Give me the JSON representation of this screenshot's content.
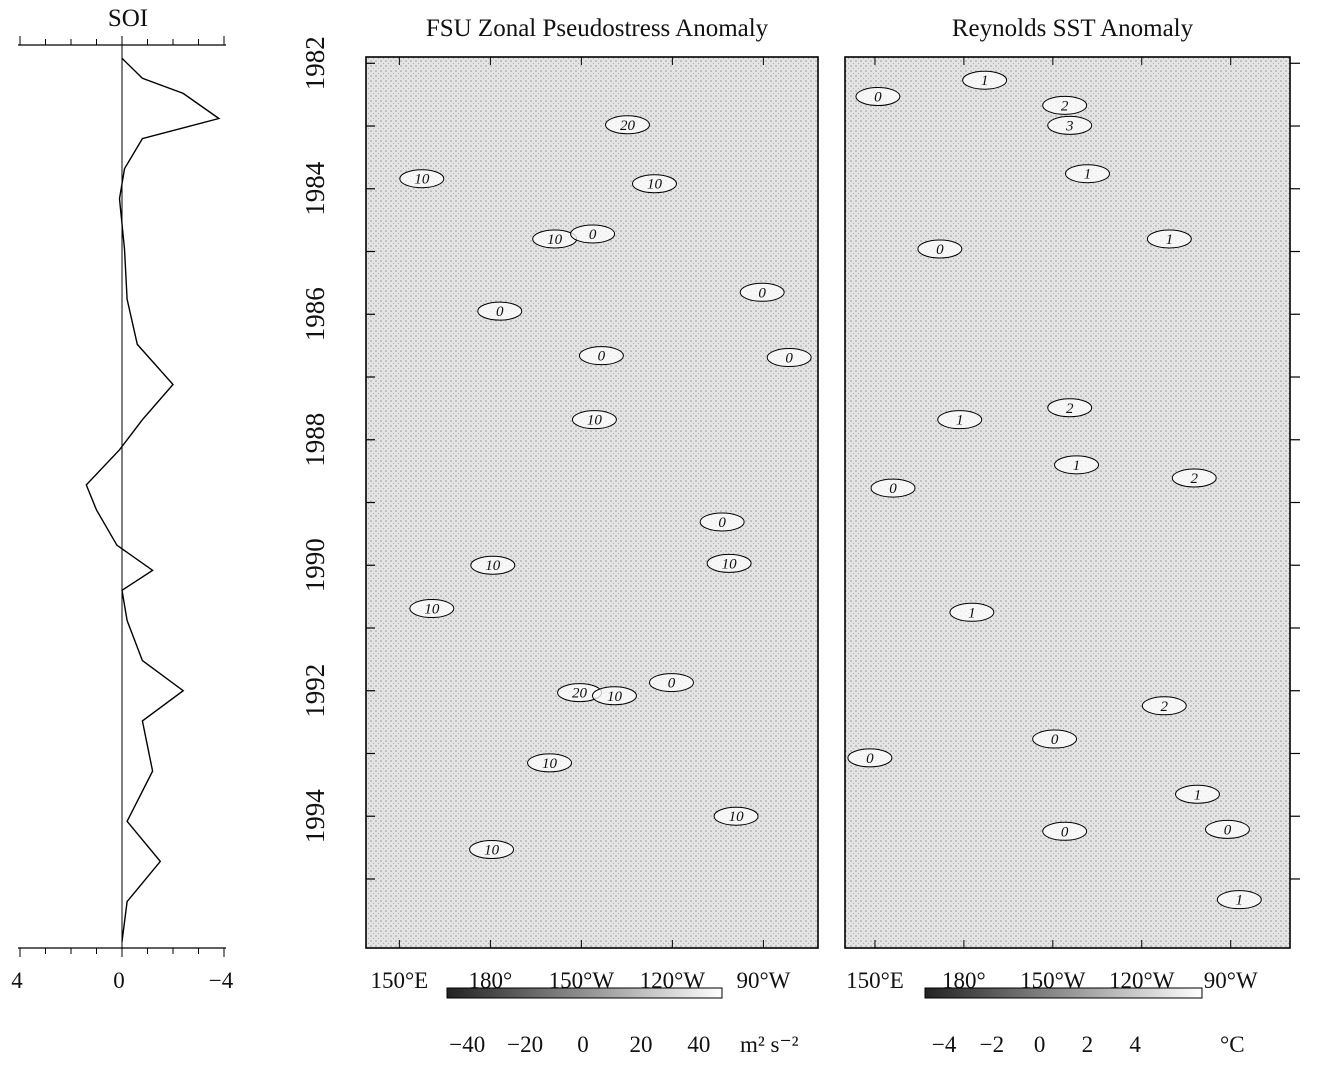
{
  "chart_data": [
    {
      "type": "line",
      "title": "SOI",
      "time": [
        1981.92,
        1982.24,
        1982.48,
        1982.88,
        1983.2,
        1983.68,
        1984.16,
        1984.96,
        1985.76,
        1986.48,
        1987.12,
        1987.68,
        1988.16,
        1988.72,
        1989.12,
        1989.68,
        1990.08,
        1990.4,
        1990.88,
        1991.52,
        1992.0,
        1992.48,
        1993.28,
        1994.08,
        1994.72,
        1995.36,
        1996.0
      ],
      "values": [
        0,
        -0.8,
        -2.4,
        -3.8,
        -0.8,
        -0.1,
        0.1,
        -0.1,
        -0.2,
        -0.6,
        -2.0,
        -0.8,
        0.1,
        1.4,
        1.0,
        0.2,
        -1.2,
        0,
        -0.2,
        -0.8,
        -2.4,
        -0.8,
        -1.2,
        -0.2,
        -1.5,
        -0.2,
        0
      ],
      "xlim": [
        4,
        -4
      ],
      "xticks": [
        4,
        0,
        {
          "value": -4,
          "label": "−4"
        }
      ],
      "xminorticks": [
        3,
        2,
        1,
        -1,
        -2,
        -3
      ],
      "ylim": [
        1981.9,
        1996.1
      ],
      "color": "#000"
    },
    {
      "type": "contour",
      "title": "FSU Zonal Pseudostress Anomaly",
      "xlim": [
        139,
        288
      ],
      "xticks": [
        {
          "value": 150,
          "label": "150°E"
        },
        {
          "value": 180,
          "label": "180°"
        },
        {
          "value": 210,
          "label": "150°W"
        },
        {
          "value": 240,
          "label": "120°W"
        },
        {
          "value": 270,
          "label": "90°W"
        }
      ],
      "ylim": [
        1981.9,
        1996.1
      ],
      "yticks": [
        1982,
        1984,
        1986,
        1988,
        1990,
        1992,
        1994
      ],
      "yminorticks": [
        1983,
        1985,
        1987,
        1989,
        1991,
        1993,
        1995
      ],
      "contour_labels": [
        {
          "level": 10,
          "lon": 234.1,
          "time": 1983.92
        },
        {
          "level": 20,
          "lon": 225.2,
          "time": 1982.98
        },
        {
          "level": 10,
          "lon": 157.4,
          "time": 1983.84
        },
        {
          "level": 10,
          "lon": 201.2,
          "time": 1984.8
        },
        {
          "level": 0,
          "lon": 213.7,
          "time": 1984.72
        },
        {
          "level": 0,
          "lon": 269.6,
          "time": 1985.65
        },
        {
          "level": 0,
          "lon": 183.1,
          "time": 1985.95
        },
        {
          "level": 0,
          "lon": 216.6,
          "time": 1986.66
        },
        {
          "level": 0,
          "lon": 278.5,
          "time": 1986.69
        },
        {
          "level": 10,
          "lon": 214.3,
          "time": 1987.68
        },
        {
          "level": 0,
          "lon": 256.4,
          "time": 1989.31
        },
        {
          "level": 10,
          "lon": 180.8,
          "time": 1990.0
        },
        {
          "level": 10,
          "lon": 258.7,
          "time": 1989.97
        },
        {
          "level": 10,
          "lon": 160.7,
          "time": 1990.69
        },
        {
          "level": 20,
          "lon": 209.4,
          "time": 1992.03
        },
        {
          "level": 10,
          "lon": 220.9,
          "time": 1992.08
        },
        {
          "level": 0,
          "lon": 239.7,
          "time": 1991.87
        },
        {
          "level": 10,
          "lon": 199.5,
          "time": 1993.15
        },
        {
          "level": 10,
          "lon": 261.0,
          "time": 1994.0
        },
        {
          "level": 10,
          "lon": 180.4,
          "time": 1994.53
        }
      ],
      "colorbar": {
        "lim": [
          -47,
          48
        ],
        "ticks": [
          {
            "value": -40,
            "label": "−40"
          },
          {
            "value": -20,
            "label": "−20"
          },
          0,
          20,
          40
        ],
        "unit": "m² s⁻²",
        "colors": [
          "#222222",
          "#ffffff"
        ]
      }
    },
    {
      "type": "contour",
      "title": "Reynolds SST Anomaly",
      "xlim": [
        139.9,
        290
      ],
      "xticks": [
        {
          "value": 150,
          "label": "150°E"
        },
        {
          "value": 180,
          "label": "180°"
        },
        {
          "value": 210,
          "label": "150°W"
        },
        {
          "value": 240,
          "label": "120°W"
        },
        {
          "value": 270,
          "label": "90°W"
        }
      ],
      "ylim": [
        1981.9,
        1996.1
      ],
      "contour_labels": [
        {
          "level": 1,
          "lon": 187.0,
          "time": 1982.27
        },
        {
          "level": 0,
          "lon": 151.0,
          "time": 1982.53
        },
        {
          "level": 2,
          "lon": 214.0,
          "time": 1982.67
        },
        {
          "level": 3,
          "lon": 215.7,
          "time": 1982.99
        },
        {
          "level": 1,
          "lon": 221.7,
          "time": 1983.76
        },
        {
          "level": 1,
          "lon": 249.3,
          "time": 1984.8
        },
        {
          "level": 0,
          "lon": 171.9,
          "time": 1984.96
        },
        {
          "level": 2,
          "lon": 215.7,
          "time": 1987.49
        },
        {
          "level": 1,
          "lon": 178.6,
          "time": 1987.68
        },
        {
          "level": 1,
          "lon": 218.0,
          "time": 1988.4
        },
        {
          "level": 2,
          "lon": 257.7,
          "time": 1988.61
        },
        {
          "level": 0,
          "lon": 156.1,
          "time": 1988.77
        },
        {
          "level": 1,
          "lon": 182.7,
          "time": 1990.75
        },
        {
          "level": 2,
          "lon": 247.6,
          "time": 1992.24
        },
        {
          "level": 0,
          "lon": 210.6,
          "time": 1992.77
        },
        {
          "level": 0,
          "lon": 148.3,
          "time": 1993.07
        },
        {
          "level": 1,
          "lon": 258.8,
          "time": 1993.65
        },
        {
          "level": 0,
          "lon": 214.0,
          "time": 1994.24
        },
        {
          "level": 0,
          "lon": 268.9,
          "time": 1994.21
        },
        {
          "level": 1,
          "lon": 272.9,
          "time": 1995.33
        }
      ],
      "colorbar": {
        "lim": [
          -4.8,
          6.8
        ],
        "ticks": [
          {
            "value": -4,
            "label": "−4"
          },
          {
            "value": -2,
            "label": "−2"
          },
          0,
          2,
          4
        ],
        "unit": "°C",
        "colors": [
          "#222222",
          "#ffffff"
        ]
      }
    }
  ]
}
